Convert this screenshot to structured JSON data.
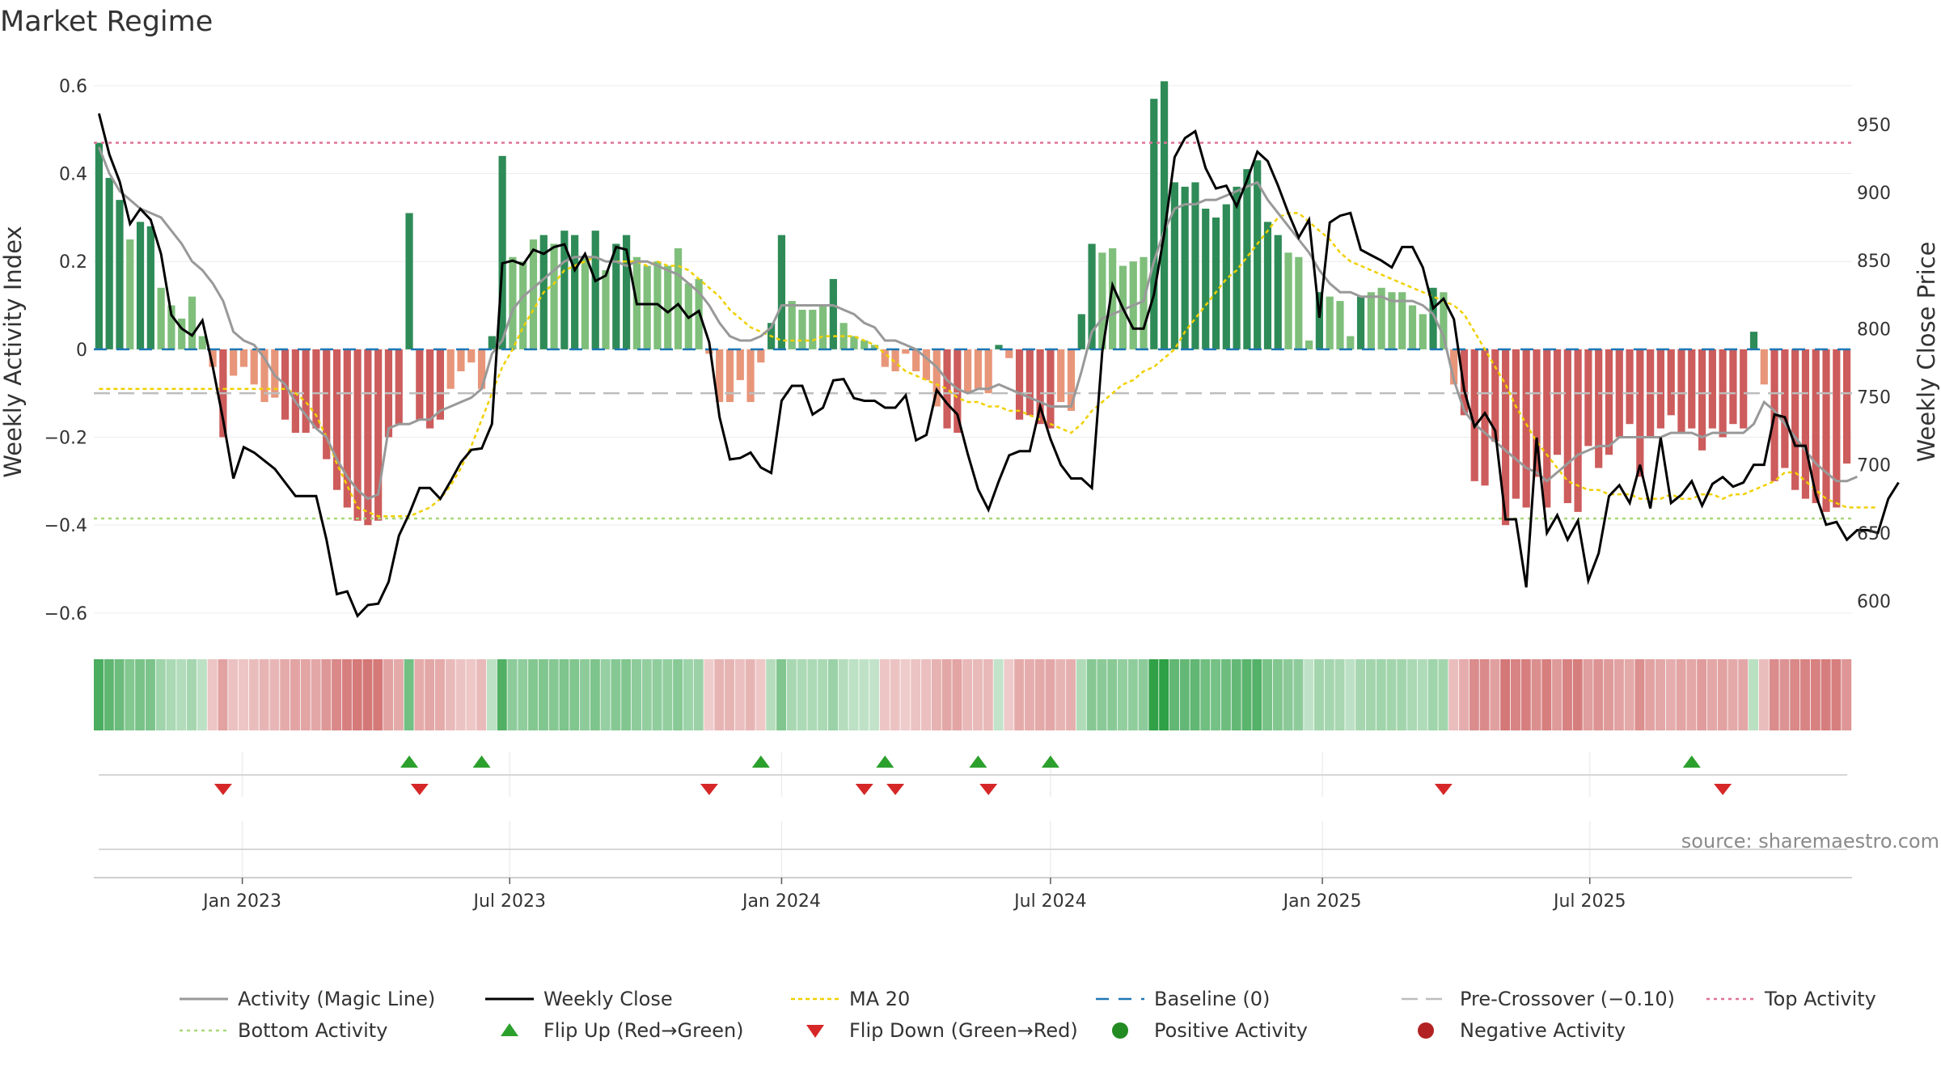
{
  "title": "Market Regime",
  "source_text": "source: sharemaestro.com",
  "colors": {
    "strong_green": "#2e8b57",
    "light_green": "#7fbf7b",
    "strong_red": "#cd5c5c",
    "light_red": "#e8967a",
    "activity_line": "#999999",
    "close_line": "#000000",
    "ma20_line": "#f0d000",
    "baseline": "#1f77b4",
    "pre_crossover": "#bdbdbd",
    "top_activity": "#e0709a",
    "bottom_activity": "#a8d878",
    "flip_up": "#2ca02c",
    "flip_down": "#d62728",
    "positive_dot": "#228b22",
    "negative_dot": "#b22222",
    "grid": "#ececec"
  },
  "legend": [
    {
      "key": "activity",
      "label": "Activity (Magic Line)"
    },
    {
      "key": "close",
      "label": "Weekly Close"
    },
    {
      "key": "ma20",
      "label": "MA 20"
    },
    {
      "key": "baseline",
      "label": "Baseline (0)"
    },
    {
      "key": "pre",
      "label": "Pre-Crossover (−0.10)"
    },
    {
      "key": "top",
      "label": "Top Activity"
    },
    {
      "key": "bottom",
      "label": "Bottom Activity"
    },
    {
      "key": "flipup",
      "label": "Flip Up (Red→Green)"
    },
    {
      "key": "flipdown",
      "label": "Flip Down (Green→Red)"
    },
    {
      "key": "pos",
      "label": "Positive Activity"
    },
    {
      "key": "neg",
      "label": "Negative Activity"
    }
  ],
  "chart_data": {
    "type": "bar",
    "title": "Market Regime",
    "ylabel": "Weekly Activity Index",
    "y2label": "Weekly Close Price",
    "ylim": [
      -0.65,
      0.62
    ],
    "y2lim": [
      575,
      985
    ],
    "yticks": [
      "0.6",
      "0.4",
      "0.2",
      "0",
      "−0.2",
      "−0.4",
      "−0.6"
    ],
    "ytick_values": [
      0.6,
      0.4,
      0.2,
      0,
      -0.2,
      -0.4,
      -0.6
    ],
    "y2ticks": [
      "950",
      "900",
      "850",
      "800",
      "750",
      "700",
      "650",
      "600"
    ],
    "y2tick_values": [
      950,
      900,
      850,
      800,
      750,
      700,
      650,
      600
    ],
    "x_start": "2022-09-26",
    "xticks": [
      "Jan 2023",
      "Jul 2023",
      "Jan 2024",
      "Jul 2024",
      "Jan 2025",
      "Jul 2025"
    ],
    "xtick_dates": [
      "2023-01-01",
      "2023-07-01",
      "2024-01-01",
      "2024-07-01",
      "2025-01-01",
      "2025-07-01"
    ],
    "top_activity": 0.47,
    "bottom_activity": -0.385,
    "pre_crossover": -0.1,
    "baseline": 0,
    "activity_index": [
      0.47,
      0.39,
      0.34,
      0.25,
      0.29,
      0.28,
      0.14,
      0.1,
      0.07,
      0.12,
      0.03,
      -0.04,
      -0.2,
      -0.06,
      -0.04,
      -0.08,
      -0.12,
      -0.11,
      -0.16,
      -0.19,
      -0.19,
      -0.18,
      -0.25,
      -0.32,
      -0.36,
      -0.39,
      -0.4,
      -0.39,
      -0.2,
      -0.17,
      0.31,
      -0.16,
      -0.18,
      -0.16,
      -0.09,
      -0.05,
      -0.03,
      -0.09,
      0.03,
      0.44,
      0.21,
      0.2,
      0.25,
      0.26,
      0.24,
      0.27,
      0.26,
      0.21,
      0.27,
      0.18,
      0.24,
      0.26,
      0.21,
      0.19,
      0.2,
      0.19,
      0.23,
      0.15,
      0.16,
      -0.01,
      -0.12,
      -0.12,
      -0.07,
      -0.12,
      -0.03,
      0.06,
      0.26,
      0.11,
      0.09,
      0.09,
      0.1,
      0.16,
      0.06,
      0.03,
      0.02,
      0.01,
      -0.04,
      -0.05,
      -0.01,
      -0.05,
      -0.07,
      -0.13,
      -0.18,
      -0.19,
      -0.1,
      -0.09,
      -0.1,
      0.01,
      -0.02,
      -0.16,
      -0.15,
      -0.17,
      -0.18,
      -0.12,
      -0.14,
      0.08,
      0.24,
      0.22,
      0.23,
      0.19,
      0.2,
      0.21,
      0.57,
      0.61,
      0.38,
      0.37,
      0.38,
      0.32,
      0.3,
      0.33,
      0.37,
      0.41,
      0.43,
      0.29,
      0.26,
      0.22,
      0.21,
      0.02,
      0.13,
      0.12,
      0.11,
      0.03,
      0.12,
      0.13,
      0.14,
      0.13,
      0.13,
      0.1,
      0.08,
      0.14,
      0.13,
      -0.08,
      -0.15,
      -0.3,
      -0.31,
      -0.21,
      -0.4,
      -0.34,
      -0.36,
      -0.29,
      -0.36,
      -0.24,
      -0.35,
      -0.37,
      -0.22,
      -0.27,
      -0.24,
      -0.2,
      -0.17,
      -0.29,
      -0.2,
      -0.18,
      -0.15,
      -0.19,
      -0.18,
      -0.23,
      -0.18,
      -0.2,
      -0.17,
      -0.18,
      0.04,
      -0.08,
      -0.3,
      -0.27,
      -0.32,
      -0.34,
      -0.35,
      -0.37,
      -0.36,
      -0.26
    ],
    "activity_line": [
      0.46,
      0.4,
      0.36,
      0.34,
      0.32,
      0.31,
      0.3,
      0.27,
      0.24,
      0.2,
      0.18,
      0.15,
      0.11,
      0.04,
      0.02,
      0.01,
      -0.02,
      -0.06,
      -0.08,
      -0.12,
      -0.15,
      -0.18,
      -0.2,
      -0.25,
      -0.29,
      -0.32,
      -0.34,
      -0.33,
      -0.18,
      -0.17,
      -0.17,
      -0.16,
      -0.16,
      -0.14,
      -0.13,
      -0.12,
      -0.11,
      -0.09,
      -0.01,
      0.02,
      0.09,
      0.12,
      0.14,
      0.16,
      0.18,
      0.2,
      0.21,
      0.21,
      0.21,
      0.2,
      0.2,
      0.19,
      0.2,
      0.2,
      0.19,
      0.18,
      0.17,
      0.15,
      0.13,
      0.1,
      0.06,
      0.03,
      0.02,
      0.02,
      0.03,
      0.05,
      0.1,
      0.1,
      0.1,
      0.1,
      0.1,
      0.1,
      0.09,
      0.08,
      0.06,
      0.05,
      0.02,
      0.02,
      0.01,
      0.0,
      -0.02,
      -0.04,
      -0.07,
      -0.09,
      -0.1,
      -0.09,
      -0.09,
      -0.08,
      -0.09,
      -0.1,
      -0.11,
      -0.12,
      -0.13,
      -0.13,
      -0.13,
      -0.05,
      0.04,
      0.07,
      0.08,
      0.09,
      0.1,
      0.11,
      0.2,
      0.27,
      0.32,
      0.33,
      0.33,
      0.34,
      0.34,
      0.35,
      0.36,
      0.37,
      0.38,
      0.34,
      0.31,
      0.28,
      0.25,
      0.22,
      0.18,
      0.15,
      0.13,
      0.13,
      0.12,
      0.12,
      0.12,
      0.11,
      0.11,
      0.11,
      0.1,
      0.08,
      0.03,
      -0.07,
      -0.14,
      -0.17,
      -0.19,
      -0.21,
      -0.23,
      -0.25,
      -0.27,
      -0.28,
      -0.3,
      -0.28,
      -0.26,
      -0.24,
      -0.23,
      -0.22,
      -0.22,
      -0.2,
      -0.2,
      -0.2,
      -0.2,
      -0.2,
      -0.19,
      -0.19,
      -0.19,
      -0.2,
      -0.19,
      -0.19,
      -0.19,
      -0.19,
      -0.17,
      -0.12,
      -0.14,
      -0.17,
      -0.2,
      -0.23,
      -0.26,
      -0.28,
      -0.3,
      -0.3,
      -0.29
    ],
    "ma20": [
      -0.09,
      -0.09,
      -0.09,
      -0.09,
      -0.09,
      -0.09,
      -0.09,
      -0.09,
      -0.09,
      -0.09,
      -0.09,
      -0.09,
      -0.09,
      -0.09,
      -0.09,
      -0.09,
      -0.09,
      -0.09,
      -0.09,
      -0.1,
      -0.12,
      -0.15,
      -0.2,
      -0.26,
      -0.31,
      -0.36,
      -0.37,
      -0.38,
      -0.38,
      -0.38,
      -0.38,
      -0.37,
      -0.36,
      -0.34,
      -0.31,
      -0.27,
      -0.22,
      -0.16,
      -0.1,
      -0.04,
      0.0,
      0.05,
      0.09,
      0.13,
      0.15,
      0.18,
      0.19,
      0.2,
      0.21,
      0.2,
      0.2,
      0.2,
      0.2,
      0.19,
      0.2,
      0.19,
      0.19,
      0.18,
      0.16,
      0.14,
      0.12,
      0.09,
      0.07,
      0.05,
      0.04,
      0.03,
      0.02,
      0.02,
      0.02,
      0.02,
      0.03,
      0.03,
      0.03,
      0.03,
      0.02,
      0.01,
      -0.01,
      -0.03,
      -0.05,
      -0.06,
      -0.07,
      -0.08,
      -0.09,
      -0.11,
      -0.12,
      -0.12,
      -0.13,
      -0.13,
      -0.14,
      -0.14,
      -0.15,
      -0.16,
      -0.17,
      -0.18,
      -0.19,
      -0.17,
      -0.14,
      -0.12,
      -0.1,
      -0.08,
      -0.07,
      -0.05,
      -0.04,
      -0.02,
      0.0,
      0.04,
      0.07,
      0.1,
      0.13,
      0.16,
      0.18,
      0.21,
      0.24,
      0.27,
      0.3,
      0.31,
      0.31,
      0.29,
      0.27,
      0.25,
      0.22,
      0.2,
      0.19,
      0.18,
      0.17,
      0.16,
      0.15,
      0.14,
      0.13,
      0.12,
      0.11,
      0.1,
      0.08,
      0.04,
      0.0,
      -0.04,
      -0.08,
      -0.13,
      -0.17,
      -0.21,
      -0.24,
      -0.27,
      -0.3,
      -0.31,
      -0.32,
      -0.32,
      -0.33,
      -0.33,
      -0.33,
      -0.34,
      -0.34,
      -0.34,
      -0.33,
      -0.34,
      -0.34,
      -0.33,
      -0.33,
      -0.34,
      -0.33,
      -0.33,
      -0.32,
      -0.31,
      -0.3,
      -0.28,
      -0.28,
      -0.3,
      -0.32,
      -0.34,
      -0.35,
      -0.36,
      -0.36,
      -0.36,
      -0.36
    ],
    "weekly_close": [
      958,
      928,
      908,
      877,
      888,
      880,
      855,
      810,
      800,
      795,
      806,
      772,
      733,
      690,
      713,
      709,
      703,
      697,
      687,
      677,
      677,
      677,
      645,
      605,
      607,
      589,
      597,
      598,
      614,
      648,
      664,
      683,
      683,
      675,
      688,
      702,
      711,
      712,
      730,
      848,
      850,
      847,
      858,
      855,
      860,
      862,
      843,
      855,
      835,
      839,
      860,
      858,
      818,
      818,
      818,
      812,
      818,
      808,
      813,
      790,
      735,
      704,
      705,
      709,
      698,
      694,
      747,
      758,
      758,
      737,
      742,
      762,
      763,
      749,
      747,
      747,
      742,
      742,
      751,
      718,
      722,
      755,
      745,
      737,
      708,
      682,
      667,
      688,
      707,
      710,
      710,
      743,
      719,
      700,
      690,
      690,
      683,
      783,
      832,
      815,
      800,
      800,
      825,
      870,
      926,
      940,
      945,
      918,
      903,
      905,
      890,
      909,
      930,
      923,
      905,
      885,
      867,
      880,
      808,
      878,
      883,
      885,
      858,
      854,
      850,
      845,
      860,
      860,
      845,
      815,
      822,
      807,
      755,
      728,
      738,
      725,
      660,
      660,
      610,
      720,
      650,
      663,
      645,
      659,
      615,
      635,
      677,
      685,
      672,
      700,
      668,
      720,
      672,
      678,
      688,
      670,
      686,
      691,
      684,
      687,
      700,
      700,
      737,
      735,
      714,
      714,
      678,
      656,
      658,
      645,
      652,
      652,
      650,
      675,
      687
    ],
    "regime_strip": [
      0.47,
      0.39,
      0.34,
      0.25,
      0.29,
      0.28,
      0.14,
      0.1,
      0.07,
      0.12,
      0.03,
      -0.04,
      -0.2,
      -0.06,
      -0.04,
      -0.08,
      -0.12,
      -0.11,
      -0.16,
      -0.19,
      -0.19,
      -0.18,
      -0.25,
      -0.32,
      -0.36,
      -0.39,
      -0.4,
      -0.39,
      -0.2,
      -0.17,
      0.31,
      -0.16,
      -0.18,
      -0.16,
      -0.09,
      -0.05,
      -0.03,
      -0.09,
      0.03,
      0.44,
      0.21,
      0.2,
      0.25,
      0.26,
      0.24,
      0.27,
      0.26,
      0.21,
      0.27,
      0.18,
      0.24,
      0.26,
      0.21,
      0.19,
      0.2,
      0.19,
      0.23,
      0.15,
      0.16,
      -0.01,
      -0.12,
      -0.12,
      -0.07,
      -0.12,
      -0.03,
      0.06,
      0.26,
      0.11,
      0.09,
      0.09,
      0.1,
      0.16,
      0.06,
      0.03,
      0.02,
      0.01,
      -0.04,
      -0.05,
      -0.01,
      -0.05,
      -0.07,
      -0.13,
      -0.18,
      -0.19,
      -0.1,
      -0.09,
      -0.1,
      0.01,
      -0.02,
      -0.16,
      -0.15,
      -0.17,
      -0.18,
      -0.12,
      -0.14,
      0.08,
      0.24,
      0.22,
      0.23,
      0.19,
      0.2,
      0.21,
      0.57,
      0.61,
      0.38,
      0.37,
      0.38,
      0.32,
      0.3,
      0.33,
      0.37,
      0.41,
      0.43,
      0.29,
      0.26,
      0.22,
      0.21,
      0.02,
      0.13,
      0.12,
      0.11,
      0.03,
      0.12,
      0.13,
      0.14,
      0.13,
      0.13,
      0.1,
      0.08,
      0.14,
      0.13,
      -0.08,
      -0.15,
      -0.3,
      -0.31,
      -0.21,
      -0.4,
      -0.34,
      -0.36,
      -0.29,
      -0.36,
      -0.24,
      -0.35,
      -0.37,
      -0.22,
      -0.27,
      -0.24,
      -0.2,
      -0.17,
      -0.29,
      -0.2,
      -0.18,
      -0.15,
      -0.19,
      -0.18,
      -0.23,
      -0.18,
      -0.2,
      -0.17,
      -0.18,
      0.04,
      -0.08,
      -0.3,
      -0.27,
      -0.32,
      -0.34,
      -0.35,
      -0.37,
      -0.36,
      -0.26
    ],
    "flip_up_weeks": [
      30,
      37,
      64,
      76,
      85,
      92,
      154
    ],
    "flip_down_weeks": [
      12,
      31,
      59,
      74,
      77,
      86,
      130,
      157
    ]
  }
}
